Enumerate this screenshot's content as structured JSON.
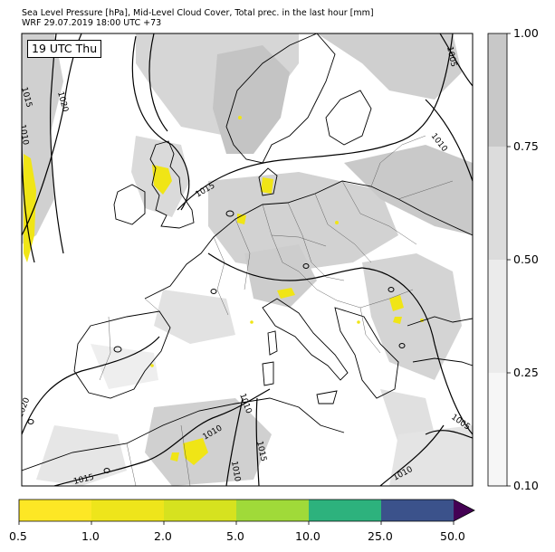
{
  "header": {
    "title_line1": "Sea Level Pressure [hPa], Mid-Level Cloud Cover, Total prec. in the last hour [mm]",
    "title_line2": "WRF 29.07.2019 18:00 UTC +73"
  },
  "map": {
    "time_label": "19 UTC Thu",
    "isobar_labels": [
      "1015",
      "1020",
      "1010",
      "1005",
      "1010",
      "1015",
      "1020",
      "1010",
      "1015",
      "1015",
      "1010",
      "1010",
      "1005"
    ],
    "colors": {
      "isobar": "#000000",
      "cloud_light": "#dcdcdc",
      "cloud_dark": "#bdbdbd",
      "precip": "#f0e516",
      "coast": "#000000"
    }
  },
  "cloud_colorbar": {
    "ticks": [
      "1.00",
      "0.75",
      "0.50",
      "0.25",
      "0.10"
    ],
    "colors": [
      "#c8c8c8",
      "#dcdcdc",
      "#ebebeb",
      "#f6f6f6"
    ]
  },
  "precip_colorbar": {
    "ticks": [
      "0.5",
      "1.0",
      "2.0",
      "5.0",
      "10.0",
      "25.0",
      "50.0"
    ],
    "colors": [
      "#fde725",
      "#eee51b",
      "#d6e21f",
      "#a0da39",
      "#4ac16d",
      "#2db27d",
      "#3b528b",
      "#440154"
    ]
  }
}
